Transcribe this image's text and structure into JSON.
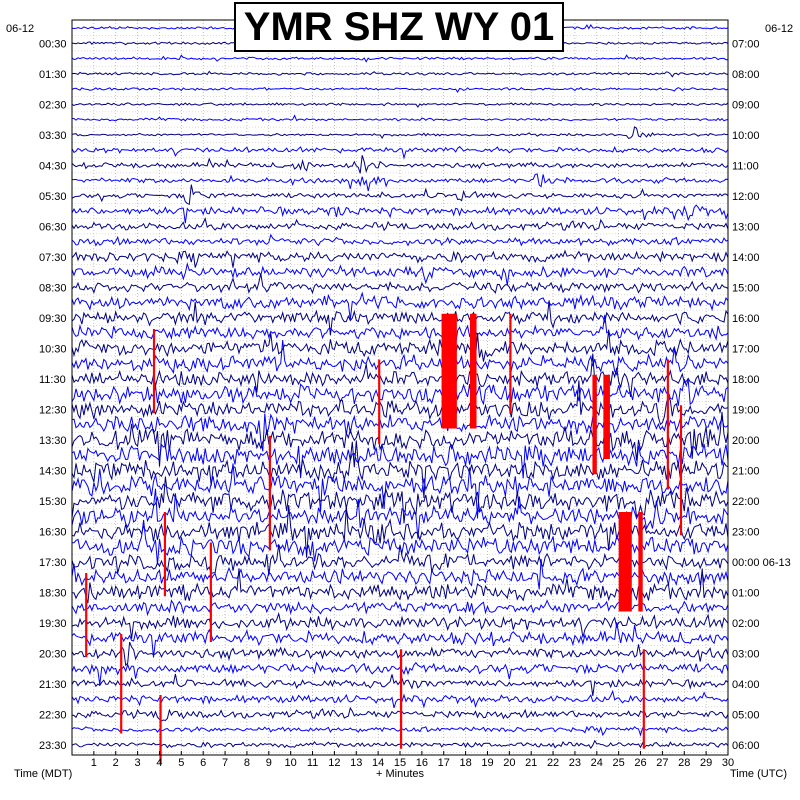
{
  "chart_data": {
    "type": "line",
    "title": "YMR SHZ WY 01",
    "date_left": "06-12",
    "date_right": "06-12",
    "xlabel": "+ Minutes",
    "left_axis_caption": "Time (MDT)",
    "right_axis_caption": "Time (UTC)",
    "x_ticks": [
      "1",
      "2",
      "3",
      "4",
      "5",
      "6",
      "7",
      "8",
      "9",
      "10",
      "11",
      "12",
      "13",
      "14",
      "15",
      "16",
      "17",
      "18",
      "19",
      "20",
      "21",
      "22",
      "23",
      "24",
      "25",
      "26",
      "27",
      "28",
      "29",
      "30"
    ],
    "xlim": [
      0,
      30
    ],
    "left_hour_labels": [
      "00:30",
      "01:30",
      "02:30",
      "03:30",
      "04:30",
      "05:30",
      "06:30",
      "07:30",
      "08:30",
      "09:30",
      "10:30",
      "11:30",
      "12:30",
      "13:30",
      "14:30",
      "15:30",
      "16:30",
      "17:30",
      "18:30",
      "19:30",
      "20:30",
      "21:30",
      "22:30",
      "23:30"
    ],
    "right_hour_labels": [
      "07:00",
      "08:00",
      "09:00",
      "10:00",
      "11:00",
      "12:00",
      "13:00",
      "14:00",
      "15:00",
      "16:00",
      "17:00",
      "18:00",
      "19:00",
      "20:00",
      "21:00",
      "22:00",
      "23:00",
      "00:00 06-13",
      "01:00",
      "02:00",
      "03:00",
      "04:00",
      "05:00",
      "06:00"
    ],
    "trace_count": 48,
    "trace_colors": [
      "#0000ff",
      "#000080"
    ],
    "clip_color": "#ff0000",
    "grid": true,
    "traces_note_amplitude": [
      1,
      1,
      1,
      1,
      1,
      1,
      1,
      1,
      2,
      2,
      2,
      2,
      3,
      3,
      3,
      4,
      4,
      4,
      5,
      5,
      5,
      6,
      6,
      6,
      7,
      7,
      7,
      8,
      8,
      8,
      8,
      8,
      7,
      7,
      7,
      6,
      6,
      6,
      5,
      5,
      5,
      4,
      4,
      3,
      3,
      3,
      2,
      2
    ],
    "events": [
      {
        "trace": 7,
        "minute": 25.5,
        "amp": 3
      },
      {
        "trace": 9,
        "minute": 10.2,
        "amp": 3
      },
      {
        "trace": 9,
        "minute": 13.0,
        "amp": 4
      },
      {
        "trace": 10,
        "minute": 13.2,
        "amp": 4
      },
      {
        "trace": 10,
        "minute": 21.2,
        "amp": 3
      },
      {
        "trace": 11,
        "minute": 5.2,
        "amp": 4
      },
      {
        "trace": 11,
        "minute": 17.5,
        "amp": 3
      },
      {
        "trace": 12,
        "minute": 28.0,
        "amp": 3
      },
      {
        "trace": 12,
        "minute": 12.0,
        "amp": 2
      },
      {
        "trace": 14,
        "minute": 9.0,
        "amp": 2
      },
      {
        "trace": 20,
        "minute": 17.0,
        "amp": 5
      },
      {
        "trace": 21,
        "minute": 18.5,
        "amp": 4
      },
      {
        "trace": 23,
        "minute": 24.5,
        "amp": 5
      },
      {
        "trace": 23,
        "minute": 25.2,
        "amp": 5
      },
      {
        "trace": 24,
        "minute": 27.8,
        "amp": 5
      },
      {
        "trace": 25,
        "minute": 26.8,
        "amp": 5
      },
      {
        "trace": 26,
        "minute": 8.5,
        "amp": 4
      },
      {
        "trace": 27,
        "minute": 28.2,
        "amp": 5
      },
      {
        "trace": 31,
        "minute": 25.6,
        "amp": 6
      },
      {
        "trace": 32,
        "minute": 26.3,
        "amp": 5
      },
      {
        "trace": 33,
        "minute": 13.8,
        "amp": 4
      },
      {
        "trace": 35,
        "minute": 6.2,
        "amp": 4
      },
      {
        "trace": 37,
        "minute": 0.8,
        "amp": 4
      },
      {
        "trace": 41,
        "minute": 2.2,
        "amp": 4
      },
      {
        "trace": 43,
        "minute": 15.1,
        "amp": 3
      },
      {
        "trace": 45,
        "minute": 4.0,
        "amp": 3
      }
    ],
    "clipped": [
      {
        "minute_start": 16.9,
        "minute_end": 17.6,
        "top_trace": 19,
        "bottom_trace": 26
      },
      {
        "minute_start": 18.2,
        "minute_end": 18.5,
        "top_trace": 19,
        "bottom_trace": 26
      },
      {
        "minute_start": 23.8,
        "minute_end": 24.0,
        "top_trace": 23,
        "bottom_trace": 29
      },
      {
        "minute_start": 24.3,
        "minute_end": 24.6,
        "top_trace": 23,
        "bottom_trace": 28
      },
      {
        "minute_start": 25.0,
        "minute_end": 25.6,
        "top_trace": 32,
        "bottom_trace": 38
      },
      {
        "minute_start": 25.9,
        "minute_end": 26.1,
        "top_trace": 32,
        "bottom_trace": 38
      },
      {
        "minute_start": 20.0,
        "minute_end": 20.1,
        "top_trace": 19,
        "bottom_trace": 25
      },
      {
        "minute_start": 4.2,
        "minute_end": 4.3,
        "top_trace": 32,
        "bottom_trace": 37
      },
      {
        "minute_start": 6.3,
        "minute_end": 6.4,
        "top_trace": 34,
        "bottom_trace": 40
      },
      {
        "minute_start": 0.6,
        "minute_end": 0.7,
        "top_trace": 36,
        "bottom_trace": 41
      },
      {
        "minute_start": 2.2,
        "minute_end": 2.3,
        "top_trace": 40,
        "bottom_trace": 46
      },
      {
        "minute_start": 4.0,
        "minute_end": 4.1,
        "top_trace": 44,
        "bottom_trace": 48
      },
      {
        "minute_start": 15.0,
        "minute_end": 15.1,
        "top_trace": 41,
        "bottom_trace": 47
      },
      {
        "minute_start": 26.1,
        "minute_end": 26.2,
        "top_trace": 41,
        "bottom_trace": 47
      },
      {
        "minute_start": 9.0,
        "minute_end": 9.1,
        "top_trace": 27,
        "bottom_trace": 34
      },
      {
        "minute_start": 3.7,
        "minute_end": 3.8,
        "top_trace": 20,
        "bottom_trace": 25
      },
      {
        "minute_start": 14.0,
        "minute_end": 14.1,
        "top_trace": 22,
        "bottom_trace": 27
      },
      {
        "minute_start": 27.2,
        "minute_end": 27.3,
        "top_trace": 22,
        "bottom_trace": 30
      },
      {
        "minute_start": 27.8,
        "minute_end": 27.9,
        "top_trace": 25,
        "bottom_trace": 33
      }
    ]
  }
}
